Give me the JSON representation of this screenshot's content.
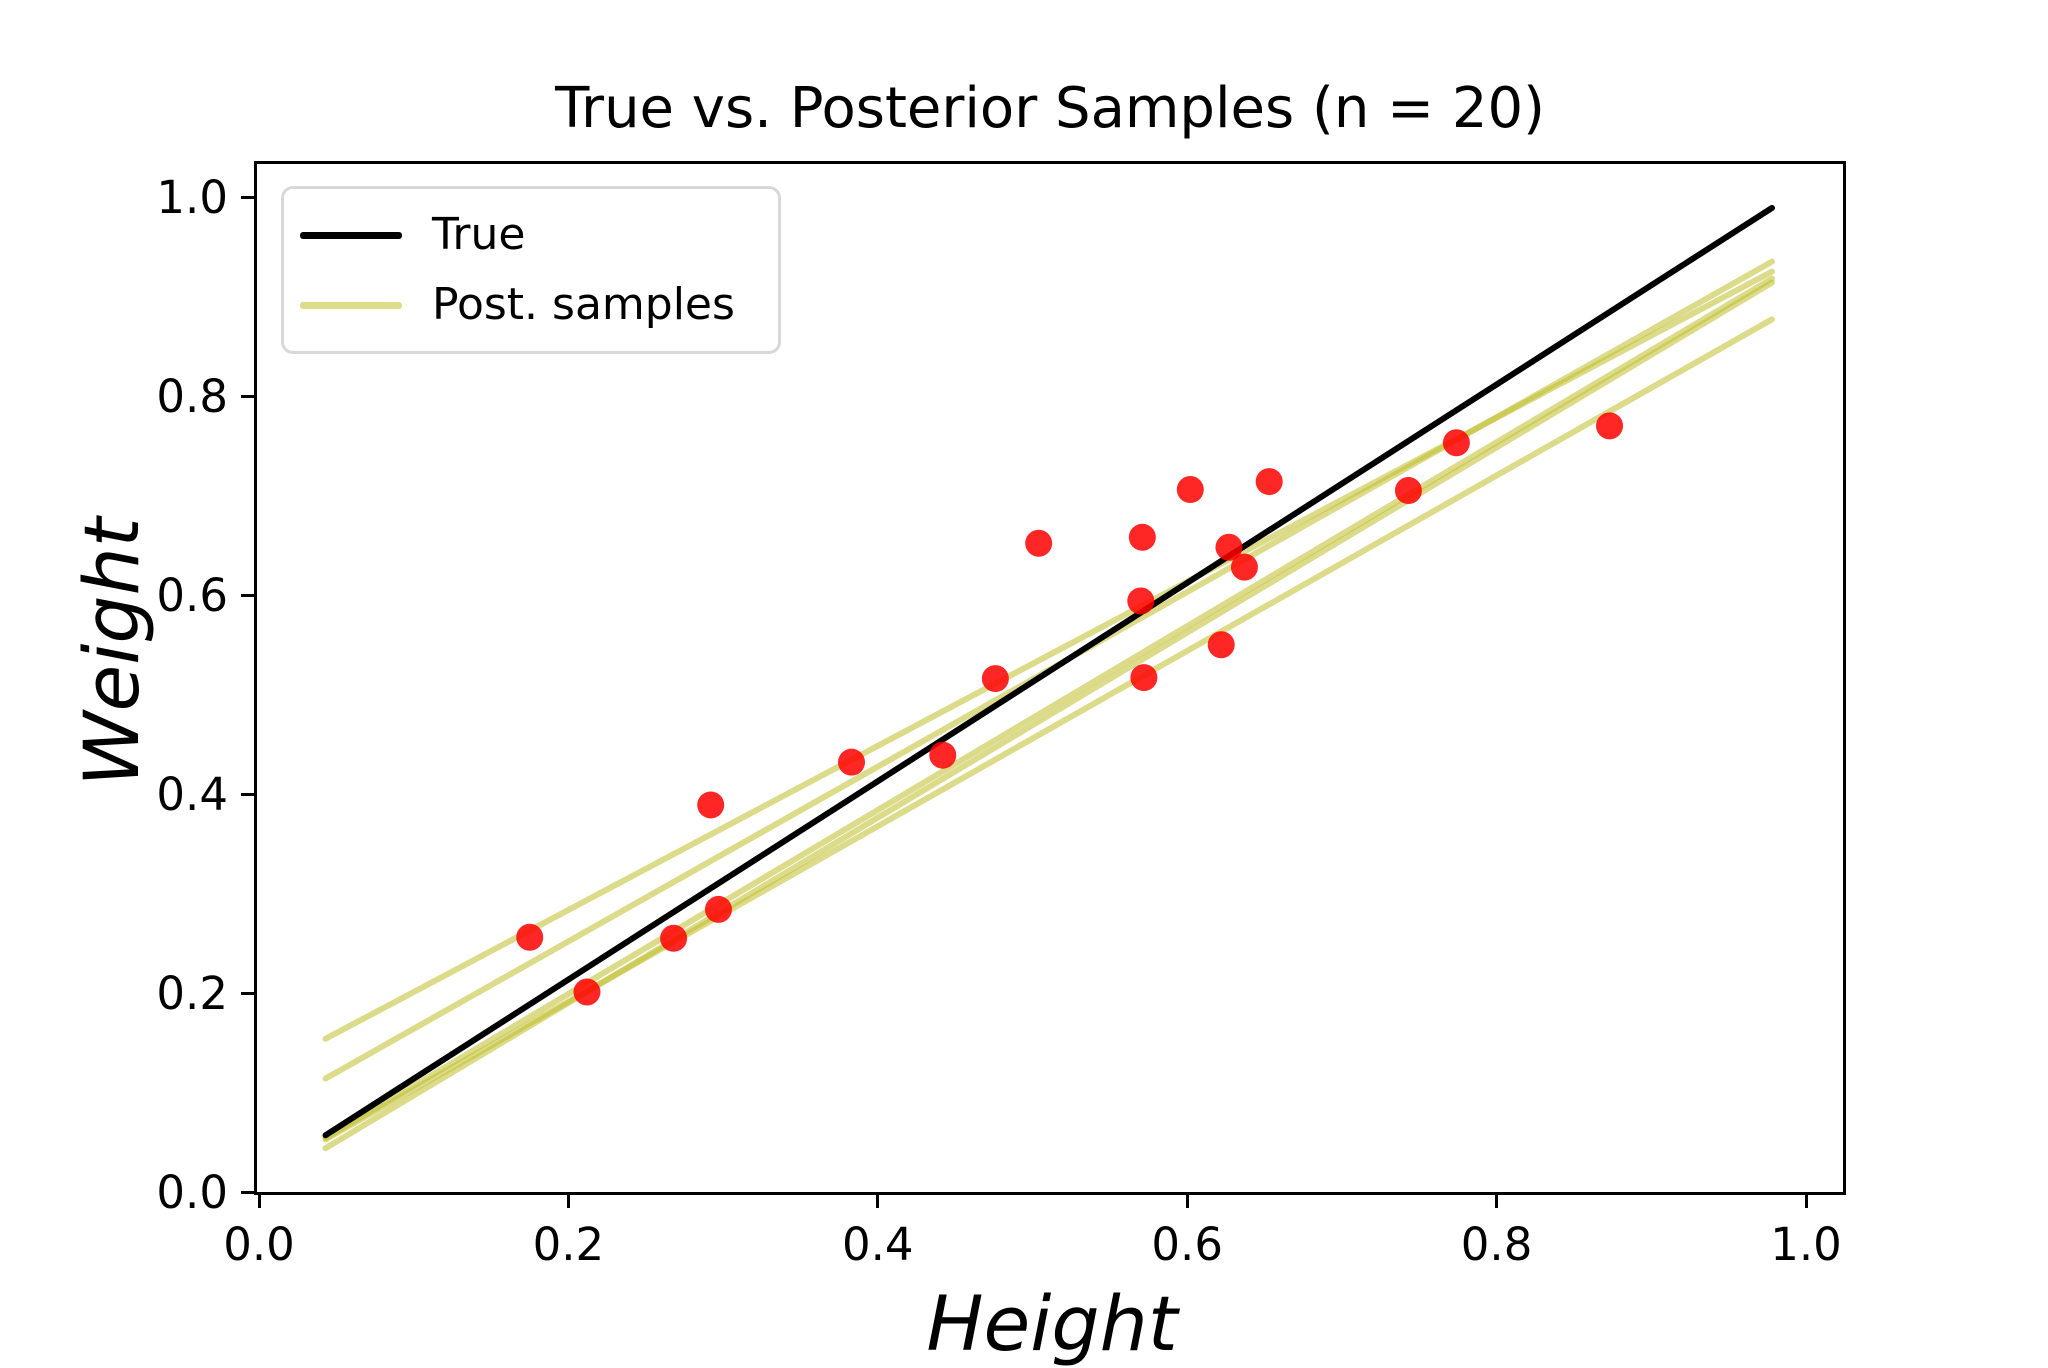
{
  "title": "True vs. Posterior Samples (n = 20)",
  "xlabel": "Height",
  "ylabel": "Weight",
  "legend": {
    "position": "upper left",
    "entries": [
      {
        "label": "True",
        "color": "#000000"
      },
      {
        "label": "Post. samples",
        "color": "#dddc8b"
      }
    ]
  },
  "colors": {
    "true_line": "#000000",
    "posterior_line": "#bdbd2a",
    "posterior_opacity": 0.55,
    "scatter": "#ff0000",
    "scatter_opacity": 0.85,
    "legend_border": "#d8d8d8",
    "background": "#ffffff"
  },
  "chart_data": {
    "type": "scatter",
    "title": "True vs. Posterior Samples (n = 20)",
    "xlabel": "Height",
    "ylabel": "Weight",
    "xlim": [
      0,
      1.024
    ],
    "ylim": [
      0,
      1.033
    ],
    "xticks": [
      0.0,
      0.2,
      0.4,
      0.6,
      0.8,
      1.0
    ],
    "yticks": [
      0.0,
      0.2,
      0.4,
      0.6,
      0.8,
      1.0
    ],
    "grid": false,
    "n_points": 20,
    "scatter": {
      "name": "observations",
      "marker": "circle",
      "points": [
        [
          0.175,
          0.256
        ],
        [
          0.212,
          0.201
        ],
        [
          0.268,
          0.255
        ],
        [
          0.297,
          0.284
        ],
        [
          0.292,
          0.389
        ],
        [
          0.383,
          0.432
        ],
        [
          0.442,
          0.439
        ],
        [
          0.476,
          0.516
        ],
        [
          0.504,
          0.652
        ],
        [
          0.571,
          0.658
        ],
        [
          0.57,
          0.594
        ],
        [
          0.572,
          0.517
        ],
        [
          0.602,
          0.706
        ],
        [
          0.622,
          0.55
        ],
        [
          0.627,
          0.648
        ],
        [
          0.637,
          0.628
        ],
        [
          0.653,
          0.714
        ],
        [
          0.743,
          0.705
        ],
        [
          0.774,
          0.753
        ],
        [
          0.873,
          0.77
        ]
      ]
    },
    "lines": [
      {
        "name": "posterior-sample-1",
        "series": "Post. samples",
        "x": [
          0.043,
          0.978
        ],
        "y": [
          0.154,
          0.925
        ]
      },
      {
        "name": "posterior-sample-2",
        "series": "Post. samples",
        "x": [
          0.043,
          0.978
        ],
        "y": [
          0.114,
          0.935
        ]
      },
      {
        "name": "posterior-sample-3",
        "series": "Post. samples",
        "x": [
          0.043,
          0.978
        ],
        "y": [
          0.054,
          0.918
        ]
      },
      {
        "name": "posterior-sample-4",
        "series": "Post. samples",
        "x": [
          0.043,
          0.978
        ],
        "y": [
          0.044,
          0.914
        ]
      },
      {
        "name": "posterior-sample-5",
        "series": "Post. samples",
        "x": [
          0.043,
          0.978
        ],
        "y": [
          0.053,
          0.877
        ]
      },
      {
        "name": "true-line",
        "series": "True",
        "x": [
          0.043,
          0.978
        ],
        "y": [
          0.057,
          0.989
        ]
      }
    ]
  }
}
